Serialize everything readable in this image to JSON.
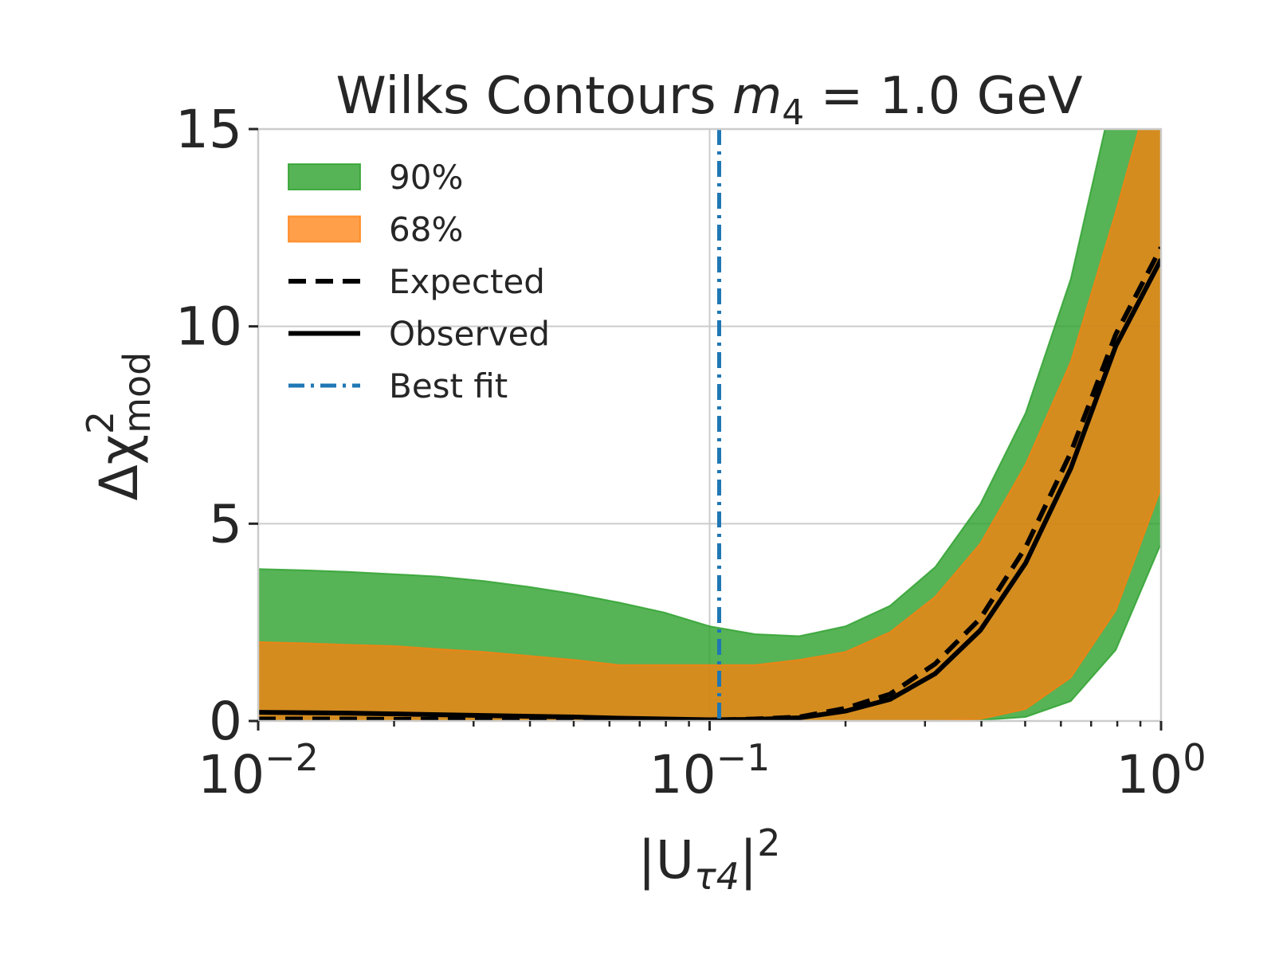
{
  "chart_data": {
    "type": "band-line",
    "title": [
      "Wilks Contours ",
      "m",
      "4",
      " = 1.0 GeV"
    ],
    "xlabel": [
      "|U",
      "τ4",
      "|",
      "2"
    ],
    "ylabel": [
      "Δχ",
      "2",
      "mod"
    ],
    "xscale": "log",
    "xlim": [
      0.01,
      1
    ],
    "ylim": [
      0,
      15
    ],
    "xticks": [
      {
        "value": 0.01,
        "label": "10",
        "exponent": "−2"
      },
      {
        "value": 0.1,
        "label": "10",
        "exponent": "−1"
      },
      {
        "value": 1,
        "label": "10",
        "exponent": "0"
      }
    ],
    "xminor_ticks": [
      0.02,
      0.03,
      0.04,
      0.05,
      0.06,
      0.07,
      0.08,
      0.09,
      0.2,
      0.3,
      0.4,
      0.5,
      0.6,
      0.7,
      0.8,
      0.9
    ],
    "yticks": [
      0,
      5,
      10,
      15
    ],
    "grid": true,
    "legend": "upper left",
    "x": [
      0.01,
      0.0126,
      0.0158,
      0.02,
      0.0251,
      0.0316,
      0.0398,
      0.0501,
      0.0631,
      0.0794,
      0.1,
      0.126,
      0.158,
      0.2,
      0.251,
      0.316,
      0.398,
      0.501,
      0.631,
      0.794,
      1
    ],
    "bands": [
      {
        "name": "90%",
        "color": "#2ca02c",
        "alpha": 0.8,
        "lower": [
          0,
          0,
          0,
          0,
          0,
          0,
          0,
          0,
          0,
          0,
          0,
          0,
          0,
          0,
          0,
          0,
          0.02,
          0.1,
          0.5,
          1.8,
          4.5
        ],
        "upper": [
          3.85,
          3.82,
          3.78,
          3.72,
          3.66,
          3.55,
          3.4,
          3.22,
          3.0,
          2.75,
          2.4,
          2.2,
          2.15,
          2.4,
          2.92,
          3.9,
          5.5,
          7.8,
          11.2,
          16.2,
          20
        ]
      },
      {
        "name": "68%",
        "color": "#ff7f0e",
        "alpha": 0.75,
        "lower": [
          0,
          0,
          0,
          0,
          0,
          0,
          0,
          0,
          0,
          0,
          0,
          0,
          0,
          0,
          0,
          0,
          0.05,
          0.3,
          1.1,
          2.8,
          5.9
        ],
        "upper": [
          2.0,
          1.97,
          1.93,
          1.9,
          1.82,
          1.75,
          1.65,
          1.55,
          1.42,
          1.42,
          1.42,
          1.42,
          1.55,
          1.75,
          2.25,
          3.15,
          4.5,
          6.5,
          9.1,
          12.9,
          17
        ]
      }
    ],
    "lines": [
      {
        "name": "Expected",
        "color": "#000000",
        "style": "dashed",
        "values": [
          0.05,
          0.05,
          0.05,
          0.04,
          0.04,
          0.04,
          0.03,
          0.03,
          0.03,
          0.02,
          0.02,
          0.05,
          0.1,
          0.32,
          0.68,
          1.45,
          2.6,
          4.4,
          6.8,
          9.8,
          12.0
        ]
      },
      {
        "name": "Observed",
        "color": "#000000",
        "style": "solid",
        "values": [
          0.22,
          0.21,
          0.2,
          0.18,
          0.16,
          0.14,
          0.12,
          0.1,
          0.07,
          0.05,
          0.03,
          0.04,
          0.08,
          0.25,
          0.55,
          1.2,
          2.3,
          4.0,
          6.4,
          9.5,
          11.7
        ]
      }
    ],
    "vlines": [
      {
        "name": "Best fit",
        "color": "#1f77b4",
        "style": "dashdot",
        "x": 0.105
      }
    ]
  }
}
